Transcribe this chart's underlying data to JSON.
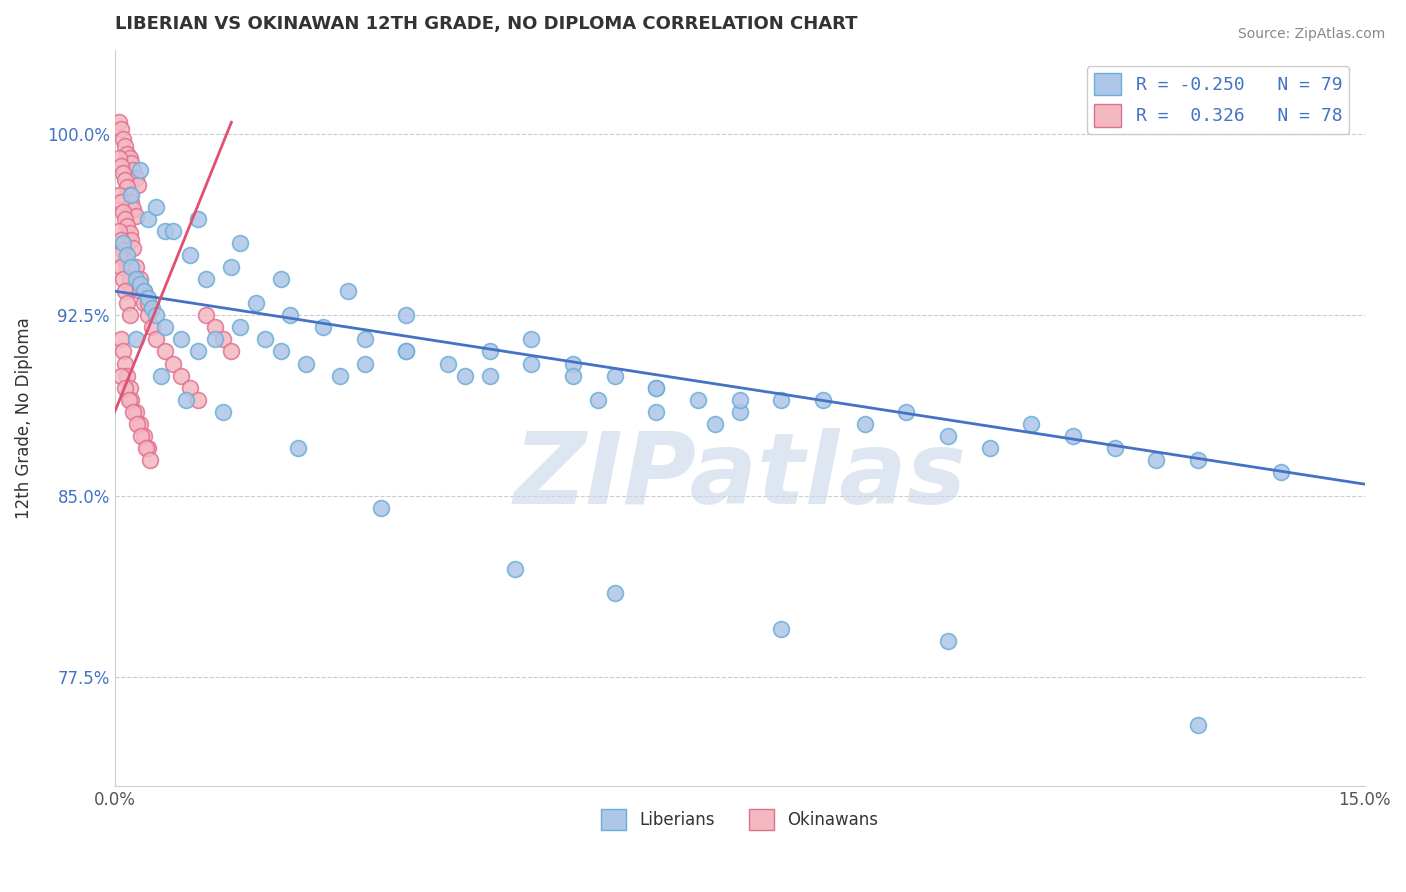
{
  "title": "LIBERIAN VS OKINAWAN 12TH GRADE, NO DIPLOMA CORRELATION CHART",
  "source": "Source: ZipAtlas.com",
  "ylabel": "12th Grade, No Diploma",
  "liberian_color": "#aec6e8",
  "liberian_edge": "#6aaed6",
  "okinawan_color": "#f4b8c1",
  "okinawan_edge": "#e07090",
  "trend_liberian_color": "#4472c4",
  "trend_okinawan_color": "#e05070",
  "watermark": "ZIPatlas",
  "watermark_color": "#c8d8e8",
  "xlim": [
    0.0,
    15.0
  ],
  "ylim": [
    73.0,
    103.5
  ],
  "yticks": [
    77.5,
    85.0,
    92.5,
    100.0
  ],
  "yticklabels": [
    "77.5%",
    "85.0%",
    "92.5%",
    "100.0%"
  ],
  "liberian_x": [
    0.1,
    0.15,
    0.2,
    0.25,
    0.3,
    0.35,
    0.4,
    0.45,
    0.5,
    0.6,
    0.8,
    1.0,
    1.2,
    1.5,
    1.8,
    2.0,
    2.3,
    2.7,
    3.0,
    3.5,
    4.0,
    4.5,
    5.0,
    5.5,
    6.0,
    6.5,
    7.0,
    7.5,
    8.0,
    9.0,
    10.0,
    11.0,
    12.0,
    13.0,
    14.0,
    0.2,
    0.4,
    0.6,
    0.9,
    1.1,
    1.4,
    1.7,
    2.1,
    2.5,
    3.0,
    3.5,
    4.2,
    5.0,
    5.8,
    6.5,
    7.2,
    8.5,
    10.5,
    12.5,
    0.3,
    0.5,
    0.7,
    1.0,
    1.5,
    2.0,
    2.8,
    3.5,
    4.5,
    5.5,
    6.5,
    7.5,
    9.5,
    11.5,
    0.25,
    0.55,
    0.85,
    1.3,
    2.2,
    3.2,
    4.8,
    6.0,
    8.0,
    10.0,
    13.0
  ],
  "liberian_y": [
    95.5,
    95.0,
    94.5,
    94.0,
    93.8,
    93.5,
    93.2,
    92.8,
    92.5,
    92.0,
    91.5,
    91.0,
    91.5,
    92.0,
    91.5,
    91.0,
    90.5,
    90.0,
    90.5,
    91.0,
    90.5,
    90.0,
    91.5,
    90.5,
    90.0,
    89.5,
    89.0,
    88.5,
    89.0,
    88.0,
    87.5,
    88.0,
    87.0,
    86.5,
    86.0,
    97.5,
    96.5,
    96.0,
    95.0,
    94.0,
    94.5,
    93.0,
    92.5,
    92.0,
    91.5,
    91.0,
    90.0,
    90.5,
    89.0,
    88.5,
    88.0,
    89.0,
    87.0,
    86.5,
    98.5,
    97.0,
    96.0,
    96.5,
    95.5,
    94.0,
    93.5,
    92.5,
    91.0,
    90.0,
    89.5,
    89.0,
    88.5,
    87.5,
    91.5,
    90.0,
    89.0,
    88.5,
    87.0,
    84.5,
    82.0,
    81.0,
    79.5,
    79.0,
    75.5
  ],
  "okinawan_x": [
    0.05,
    0.08,
    0.1,
    0.12,
    0.15,
    0.18,
    0.2,
    0.22,
    0.25,
    0.28,
    0.05,
    0.08,
    0.1,
    0.12,
    0.15,
    0.18,
    0.2,
    0.22,
    0.25,
    0.05,
    0.08,
    0.1,
    0.12,
    0.15,
    0.18,
    0.2,
    0.22,
    0.05,
    0.08,
    0.1,
    0.12,
    0.15,
    0.18,
    0.2,
    0.05,
    0.08,
    0.1,
    0.12,
    0.15,
    0.18,
    0.3,
    0.35,
    0.4,
    0.45,
    0.5,
    0.6,
    0.7,
    0.8,
    0.9,
    1.0,
    1.1,
    1.2,
    1.3,
    1.4,
    0.25,
    0.3,
    0.35,
    0.4,
    0.08,
    0.1,
    0.12,
    0.15,
    0.18,
    0.2,
    0.25,
    0.3,
    0.35,
    0.4,
    0.07,
    0.12,
    0.17,
    0.22,
    0.27,
    0.32,
    0.37,
    0.42
  ],
  "okinawan_y": [
    100.5,
    100.2,
    99.8,
    99.5,
    99.2,
    99.0,
    98.8,
    98.5,
    98.2,
    97.9,
    99.0,
    98.7,
    98.4,
    98.1,
    97.8,
    97.5,
    97.2,
    96.9,
    96.6,
    97.5,
    97.2,
    96.8,
    96.5,
    96.2,
    95.9,
    95.6,
    95.3,
    96.0,
    95.6,
    95.2,
    94.8,
    94.4,
    94.0,
    93.6,
    95.0,
    94.5,
    94.0,
    93.5,
    93.0,
    92.5,
    93.5,
    93.0,
    92.5,
    92.0,
    91.5,
    91.0,
    90.5,
    90.0,
    89.5,
    89.0,
    92.5,
    92.0,
    91.5,
    91.0,
    94.5,
    94.0,
    93.5,
    93.0,
    91.5,
    91.0,
    90.5,
    90.0,
    89.5,
    89.0,
    88.5,
    88.0,
    87.5,
    87.0,
    90.0,
    89.5,
    89.0,
    88.5,
    88.0,
    87.5,
    87.0,
    86.5
  ],
  "lib_trend_x": [
    0.0,
    15.0
  ],
  "lib_trend_y": [
    93.5,
    85.5
  ],
  "oki_trend_x": [
    0.0,
    1.4
  ],
  "oki_trend_y": [
    88.5,
    100.5
  ]
}
